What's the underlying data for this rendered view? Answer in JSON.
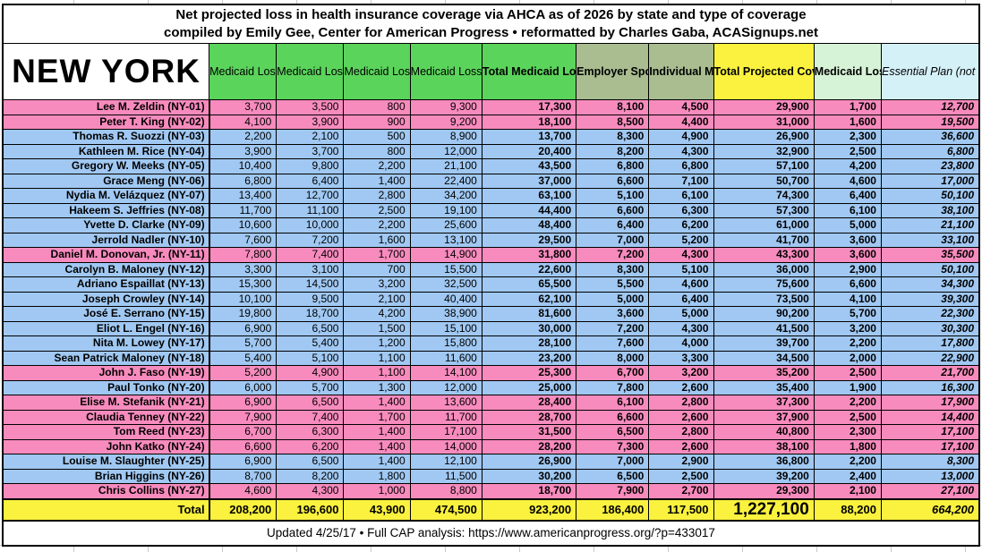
{
  "title": {
    "line1": "Net projected loss in health insurance coverage via AHCA as of 2026 by state and type of coverage",
    "line2": "compiled by Emily Gee, Center for American Progress  •  reformatted by Charles Gaba, ACASignups.net"
  },
  "state": "NEW YORK",
  "footer": {
    "text": "Updated 4/25/17  •  Full CAP analysis: https://www.americanprogress.org/?p=433017"
  },
  "colors": {
    "republican_row": "#F88BBD",
    "democrat_row": "#A0C8F2",
    "medicaid_green": "#5BD45B",
    "employer_sage": "#A9BD90",
    "total_yellow": "#FAF23E",
    "elderly_pale_green": "#D7F3D7",
    "essential_pale_cyan": "#D5F1F8",
    "border_black": "#000000"
  },
  "chart_data": {
    "type": "table",
    "title": "Net projected loss in health insurance coverage via AHCA as of 2026 by state and type of coverage",
    "columns": [
      {
        "id": "medicaid_adults",
        "label": "Medicaid\nLoss\n(adults)",
        "bg": "green",
        "bold": false,
        "italic": false
      },
      {
        "id": "medicaid_children",
        "label": "Medicaid\nLoss\n(children)",
        "bg": "green",
        "bold": false,
        "italic": false
      },
      {
        "id": "medicaid_disabled",
        "label": "Medicaid\nLoss\n(disabled)",
        "bg": "green",
        "bold": false,
        "italic": false
      },
      {
        "id": "medicaid_expansion",
        "label": "Medicaid\nLoss\n(expansion)",
        "bg": "green",
        "bold": false,
        "italic": false
      },
      {
        "id": "total_medicaid",
        "label": "Total\nMedicaid Loss\n(nonelderly)",
        "bg": "green",
        "bold": true,
        "italic": false
      },
      {
        "id": "employer",
        "label": "Employer\nSponsored\nPolicy Loss",
        "bg": "sage",
        "bold": true,
        "italic": false
      },
      {
        "id": "individual",
        "label": "Individual\nMarket\nLoss",
        "bg": "sage",
        "bold": true,
        "italic": false
      },
      {
        "id": "total_projected",
        "label": "Total Projected\nCoverage Loss\n(nonelderly)",
        "bg": "yellow",
        "bold": true,
        "italic": false
      },
      {
        "id": "medicaid_elderly",
        "label": "Medicaid\nLoss\n(elderly)",
        "bg": "pale_green",
        "bold": true,
        "italic": false
      },
      {
        "id": "essential_plan",
        "label": "Essential Plan\n(not counted\nby CBO or CAP)",
        "bg": "pale_cyan",
        "bold": false,
        "italic": true
      }
    ],
    "rows": [
      {
        "district": "ny-01",
        "rep": "Lee M. Zeldin (NY-01)",
        "party": "R",
        "values": [
          3700,
          3500,
          800,
          9300,
          17300,
          8100,
          4500,
          29900,
          1700,
          12700
        ]
      },
      {
        "district": "ny-02",
        "rep": "Peter T. King (NY-02)",
        "party": "R",
        "values": [
          4100,
          3900,
          900,
          9200,
          18100,
          8500,
          4400,
          31000,
          1600,
          19500
        ]
      },
      {
        "district": "ny-03",
        "rep": "Thomas R. Suozzi (NY-03)",
        "party": "D",
        "values": [
          2200,
          2100,
          500,
          8900,
          13700,
          8300,
          4900,
          26900,
          2300,
          36600
        ]
      },
      {
        "district": "ny-04",
        "rep": "Kathleen M. Rice (NY-04)",
        "party": "D",
        "values": [
          3900,
          3700,
          800,
          12000,
          20400,
          8200,
          4300,
          32900,
          2500,
          6800
        ]
      },
      {
        "district": "ny-05",
        "rep": "Gregory W. Meeks (NY-05)",
        "party": "D",
        "values": [
          10400,
          9800,
          2200,
          21100,
          43500,
          6800,
          6800,
          57100,
          4200,
          23800
        ]
      },
      {
        "district": "ny-06",
        "rep": "Grace Meng (NY-06)",
        "party": "D",
        "values": [
          6800,
          6400,
          1400,
          22400,
          37000,
          6600,
          7100,
          50700,
          4600,
          17000
        ]
      },
      {
        "district": "ny-07",
        "rep": "Nydia M. Velázquez (NY-07)",
        "party": "D",
        "values": [
          13400,
          12700,
          2800,
          34200,
          63100,
          5100,
          6100,
          74300,
          6400,
          50100
        ]
      },
      {
        "district": "ny-08",
        "rep": "Hakeem S. Jeffries (NY-08)",
        "party": "D",
        "values": [
          11700,
          11100,
          2500,
          19100,
          44400,
          6600,
          6300,
          57300,
          6100,
          38100
        ]
      },
      {
        "district": "ny-09",
        "rep": "Yvette D. Clarke (NY-09)",
        "party": "D",
        "values": [
          10600,
          10000,
          2200,
          25600,
          48400,
          6400,
          6200,
          61000,
          5000,
          21100
        ]
      },
      {
        "district": "ny-10",
        "rep": "Jerrold Nadler (NY-10)",
        "party": "D",
        "values": [
          7600,
          7200,
          1600,
          13100,
          29500,
          7000,
          5200,
          41700,
          3600,
          33100
        ]
      },
      {
        "district": "ny-11",
        "rep": "Daniel M. Donovan, Jr. (NY-11)",
        "party": "R",
        "values": [
          7800,
          7400,
          1700,
          14900,
          31800,
          7200,
          4300,
          43300,
          3600,
          35500
        ]
      },
      {
        "district": "ny-12",
        "rep": "Carolyn B. Maloney (NY-12)",
        "party": "D",
        "values": [
          3300,
          3100,
          700,
          15500,
          22600,
          8300,
          5100,
          36000,
          2900,
          50100
        ]
      },
      {
        "district": "ny-13",
        "rep": "Adriano Espaillat (NY-13)",
        "party": "D",
        "values": [
          15300,
          14500,
          3200,
          32500,
          65500,
          5500,
          4600,
          75600,
          6600,
          34300
        ]
      },
      {
        "district": "ny-14",
        "rep": "Joseph Crowley (NY-14)",
        "party": "D",
        "values": [
          10100,
          9500,
          2100,
          40400,
          62100,
          5000,
          6400,
          73500,
          4100,
          39300
        ]
      },
      {
        "district": "ny-15",
        "rep": "José E. Serrano (NY-15)",
        "party": "D",
        "values": [
          19800,
          18700,
          4200,
          38900,
          81600,
          3600,
          5000,
          90200,
          5700,
          22300
        ]
      },
      {
        "district": "ny-16",
        "rep": "Eliot L. Engel (NY-16)",
        "party": "D",
        "values": [
          6900,
          6500,
          1500,
          15100,
          30000,
          7200,
          4300,
          41500,
          3200,
          30300
        ]
      },
      {
        "district": "ny-17",
        "rep": "Nita M. Lowey (NY-17)",
        "party": "D",
        "values": [
          5700,
          5400,
          1200,
          15800,
          28100,
          7600,
          4000,
          39700,
          2200,
          17800
        ]
      },
      {
        "district": "ny-18",
        "rep": "Sean Patrick Maloney (NY-18)",
        "party": "D",
        "values": [
          5400,
          5100,
          1100,
          11600,
          23200,
          8000,
          3300,
          34500,
          2000,
          22900
        ]
      },
      {
        "district": "ny-19",
        "rep": "John J. Faso (NY-19)",
        "party": "R",
        "values": [
          5200,
          4900,
          1100,
          14100,
          25300,
          6700,
          3200,
          35200,
          2500,
          21700
        ]
      },
      {
        "district": "ny-20",
        "rep": "Paul Tonko (NY-20)",
        "party": "D",
        "values": [
          6000,
          5700,
          1300,
          12000,
          25000,
          7800,
          2600,
          35400,
          1900,
          16300
        ]
      },
      {
        "district": "ny-21",
        "rep": "Elise M. Stefanik (NY-21)",
        "party": "R",
        "values": [
          6900,
          6500,
          1400,
          13600,
          28400,
          6100,
          2800,
          37300,
          2200,
          17900
        ]
      },
      {
        "district": "ny-22",
        "rep": "Claudia Tenney (NY-22)",
        "party": "R",
        "values": [
          7900,
          7400,
          1700,
          11700,
          28700,
          6600,
          2600,
          37900,
          2500,
          14400
        ]
      },
      {
        "district": "ny-23",
        "rep": "Tom Reed (NY-23)",
        "party": "R",
        "values": [
          6700,
          6300,
          1400,
          17100,
          31500,
          6500,
          2800,
          40800,
          2300,
          17100
        ]
      },
      {
        "district": "ny-24",
        "rep": "John Katko (NY-24)",
        "party": "R",
        "values": [
          6600,
          6200,
          1400,
          14000,
          28200,
          7300,
          2600,
          38100,
          1800,
          17100
        ]
      },
      {
        "district": "ny-25",
        "rep": "Louise M. Slaughter (NY-25)",
        "party": "D",
        "values": [
          6900,
          6500,
          1400,
          12100,
          26900,
          7000,
          2900,
          36800,
          2200,
          8300
        ]
      },
      {
        "district": "ny-26",
        "rep": "Brian Higgins (NY-26)",
        "party": "D",
        "values": [
          8700,
          8200,
          1800,
          11500,
          30200,
          6500,
          2500,
          39200,
          2400,
          13000
        ]
      },
      {
        "district": "ny-27",
        "rep": "Chris Collins (NY-27)",
        "party": "R",
        "values": [
          4600,
          4300,
          1000,
          8800,
          18700,
          7900,
          2700,
          29300,
          2100,
          27100
        ]
      }
    ],
    "total": {
      "label": "Total",
      "values": [
        208200,
        196600,
        43900,
        474500,
        923200,
        186400,
        117500,
        1227100,
        88200,
        664200
      ]
    }
  }
}
